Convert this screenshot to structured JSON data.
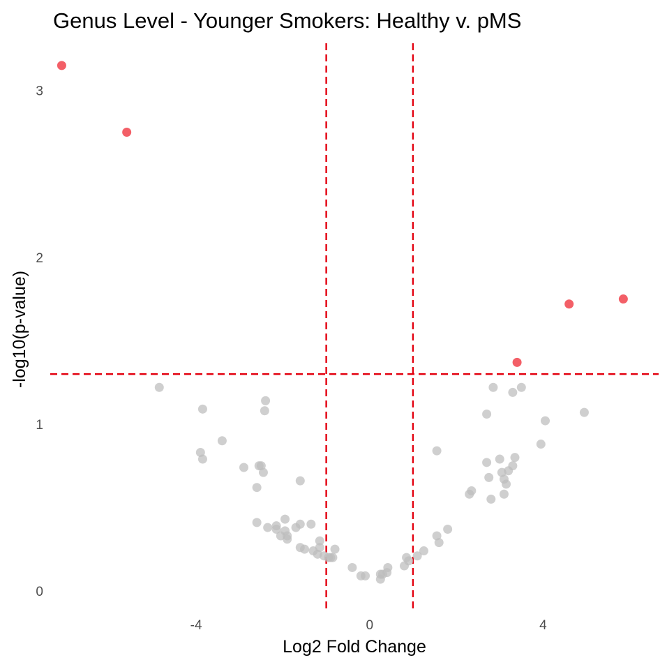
{
  "chart_data": {
    "type": "scatter",
    "title": "Genus Level - Younger Smokers: Healthy v. pMS",
    "xlabel": "Log2 Fold Change",
    "ylabel": "-log10(p-value)",
    "xlim": [
      -7.3,
      6.6
    ],
    "ylim": [
      -0.13,
      3.3
    ],
    "x_ticks": [
      {
        "value": -4,
        "label": "-4"
      },
      {
        "value": 0,
        "label": "0"
      },
      {
        "value": 4,
        "label": "4"
      }
    ],
    "y_ticks": [
      {
        "value": 0,
        "label": "0"
      },
      {
        "value": 1,
        "label": "1"
      },
      {
        "value": 2,
        "label": "2"
      },
      {
        "value": 3,
        "label": "3"
      }
    ],
    "grid": false,
    "legend": "none",
    "thresholds": {
      "x": [
        -1,
        1
      ],
      "y": 1.3,
      "color": "#e3000f",
      "style": "dashed"
    },
    "colors": {
      "significant": "#f0323c",
      "not_significant": "#bdbdbd"
    },
    "series": [
      {
        "category": "significant",
        "points": [
          [
            -7.1,
            3.15
          ],
          [
            -5.6,
            2.75
          ],
          [
            3.4,
            1.37
          ],
          [
            4.6,
            1.72
          ],
          [
            5.85,
            1.75
          ]
        ]
      },
      {
        "category": "not_significant",
        "points": [
          [
            -4.85,
            1.22
          ],
          [
            -3.85,
            1.09
          ],
          [
            -3.4,
            0.9
          ],
          [
            -3.9,
            0.83
          ],
          [
            -3.85,
            0.79
          ],
          [
            -2.9,
            0.74
          ],
          [
            -2.5,
            0.75
          ],
          [
            -2.55,
            0.75
          ],
          [
            -2.45,
            0.71
          ],
          [
            -2.6,
            0.62
          ],
          [
            -2.4,
            1.14
          ],
          [
            -2.42,
            1.08
          ],
          [
            -1.6,
            0.66
          ],
          [
            -2.6,
            0.41
          ],
          [
            -2.35,
            0.38
          ],
          [
            -2.15,
            0.39
          ],
          [
            -2.15,
            0.37
          ],
          [
            -1.95,
            0.43
          ],
          [
            -1.95,
            0.36
          ],
          [
            -2.05,
            0.33
          ],
          [
            -1.9,
            0.31
          ],
          [
            -1.9,
            0.33
          ],
          [
            -1.7,
            0.38
          ],
          [
            -1.6,
            0.4
          ],
          [
            -1.35,
            0.4
          ],
          [
            -1.6,
            0.26
          ],
          [
            -1.5,
            0.25
          ],
          [
            -1.3,
            0.24
          ],
          [
            -1.2,
            0.22
          ],
          [
            -1.15,
            0.26
          ],
          [
            -1.15,
            0.3
          ],
          [
            -1.05,
            0.21
          ],
          [
            -0.95,
            0.2
          ],
          [
            -0.9,
            0.2
          ],
          [
            -0.8,
            0.25
          ],
          [
            -0.85,
            0.2
          ],
          [
            -0.4,
            0.14
          ],
          [
            -0.2,
            0.09
          ],
          [
            -0.1,
            0.09
          ],
          [
            0.25,
            0.07
          ],
          [
            0.25,
            0.1
          ],
          [
            0.3,
            0.1
          ],
          [
            0.4,
            0.11
          ],
          [
            0.42,
            0.14
          ],
          [
            0.8,
            0.15
          ],
          [
            0.85,
            0.2
          ],
          [
            0.9,
            0.18
          ],
          [
            1.1,
            0.21
          ],
          [
            1.25,
            0.24
          ],
          [
            1.55,
            0.33
          ],
          [
            1.6,
            0.29
          ],
          [
            1.8,
            0.37
          ],
          [
            1.55,
            0.84
          ],
          [
            2.3,
            0.58
          ],
          [
            2.35,
            0.6
          ],
          [
            2.7,
            0.77
          ],
          [
            2.75,
            0.68
          ],
          [
            2.8,
            0.55
          ],
          [
            2.7,
            1.06
          ],
          [
            2.85,
            1.22
          ],
          [
            3.0,
            0.79
          ],
          [
            3.05,
            0.71
          ],
          [
            3.1,
            0.67
          ],
          [
            3.1,
            0.58
          ],
          [
            3.15,
            0.64
          ],
          [
            3.2,
            0.72
          ],
          [
            3.3,
            0.75
          ],
          [
            3.35,
            0.8
          ],
          [
            3.3,
            1.19
          ],
          [
            3.5,
            1.22
          ],
          [
            3.95,
            0.88
          ],
          [
            4.05,
            1.02
          ],
          [
            4.95,
            1.07
          ]
        ]
      }
    ]
  }
}
